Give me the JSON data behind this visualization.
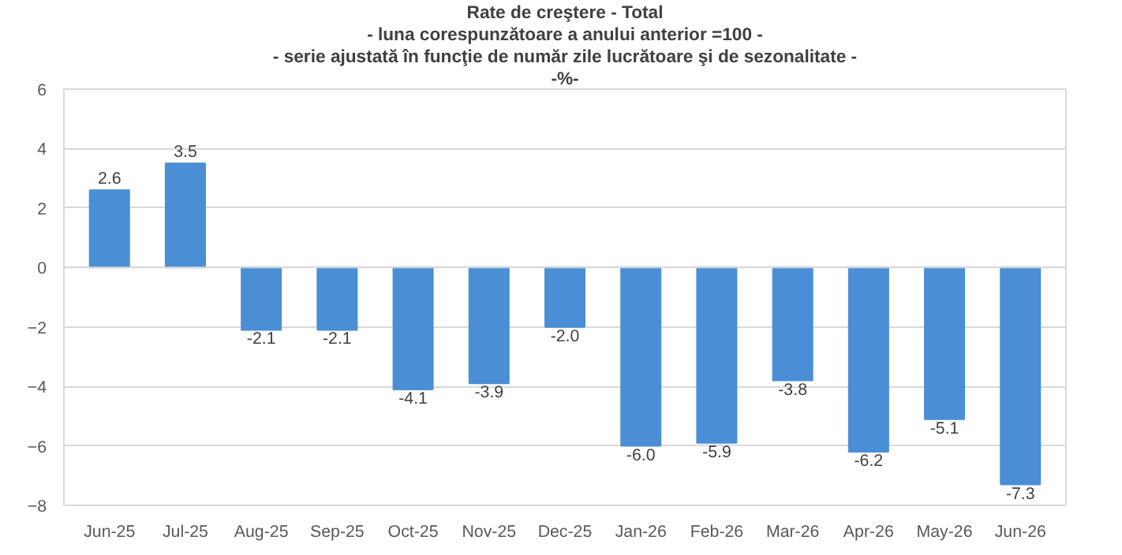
{
  "chart_data": {
    "type": "bar",
    "title": "Rate de creştere - Total",
    "subtitle": "- luna corespunzătoare a anului anterior =100 -",
    "annotations": [
      "- serie ajustată în funcţie de număr zile lucrătoare şi de sezonalitate -",
      "-%-"
    ],
    "categories": [
      "Jun-25",
      "Jul-25",
      "Aug-25",
      "Sep-25",
      "Oct-25",
      "Nov-25",
      "Dec-25",
      "Jan-26",
      "Feb-26",
      "Mar-26",
      "Apr-26",
      "May-26",
      "Jun-26"
    ],
    "values": [
      2.6,
      3.5,
      -2.1,
      -2.1,
      -4.1,
      -3.9,
      -2.0,
      -6.0,
      -5.9,
      -3.8,
      -6.2,
      -5.1,
      -7.3
    ],
    "value_labels": [
      "2.6",
      "3.5",
      "-2.1",
      "-2.1",
      "-4.1",
      "-3.9",
      "-2.0",
      "-6.0",
      "-5.9",
      "-3.8",
      "-6.2",
      "-5.1",
      "-7.3"
    ],
    "color": "#4a8fd6",
    "ylim": [
      -8,
      6
    ],
    "yticks": [
      -8,
      -6,
      -4,
      -2,
      0,
      2,
      4,
      6
    ],
    "grid": "y"
  }
}
